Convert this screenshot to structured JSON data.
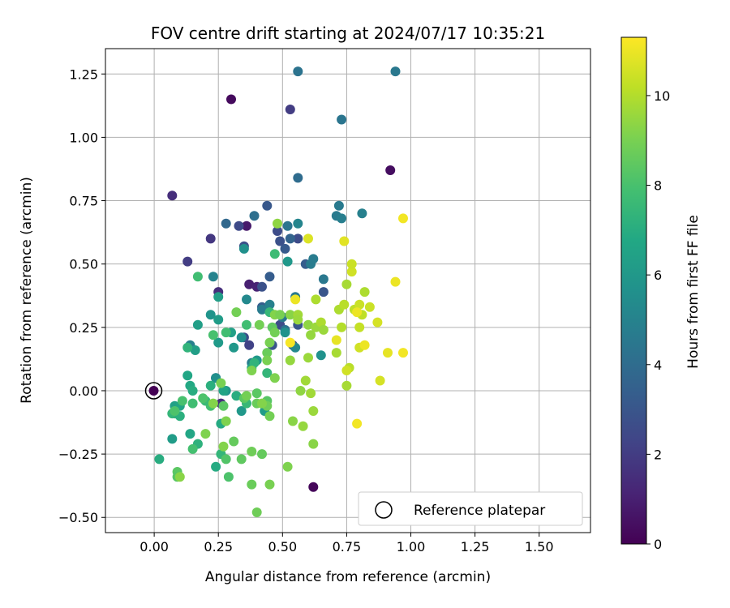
{
  "chart_data": {
    "type": "scatter",
    "title": "FOV centre drift starting at 2024/07/17 10:35:21",
    "xlabel": "Angular distance from reference (arcmin)",
    "ylabel": "Rotation from reference (arcmin)",
    "xlim": [
      -0.19,
      1.7
    ],
    "ylim": [
      -0.56,
      1.35
    ],
    "xticks": [
      0.0,
      0.25,
      0.5,
      0.75,
      1.0,
      1.25,
      1.5
    ],
    "xtick_labels": [
      "0.00",
      "0.25",
      "0.50",
      "0.75",
      "1.00",
      "1.25",
      "1.50"
    ],
    "yticks": [
      -0.5,
      -0.25,
      0.0,
      0.25,
      0.5,
      0.75,
      1.0,
      1.25
    ],
    "ytick_labels": [
      "−0.50",
      "−0.25",
      "0.00",
      "0.25",
      "0.50",
      "0.75",
      "1.00",
      "1.25"
    ],
    "grid": true,
    "colormap": "viridis",
    "colorbar": {
      "label": "Hours from first FF file",
      "range": [
        0,
        11.3
      ],
      "ticks": [
        0,
        2,
        4,
        6,
        8,
        10
      ],
      "tick_labels": [
        "0",
        "2",
        "4",
        "6",
        "8",
        "10"
      ]
    },
    "legend": {
      "placement": "lower-right",
      "entries": [
        {
          "label": "Reference platepar",
          "marker": "hollow-circle"
        }
      ]
    },
    "reference_point": {
      "x": 0.0,
      "y": 0.0,
      "hours": 0.0
    },
    "points": [
      [
        0.3,
        1.15,
        0.3
      ],
      [
        0.92,
        0.87,
        0.4
      ],
      [
        0.62,
        -0.38,
        0.2
      ],
      [
        0.36,
        0.65,
        0.8
      ],
      [
        0.37,
        0.42,
        1.0
      ],
      [
        0.4,
        0.41,
        1.1
      ],
      [
        0.07,
        0.77,
        1.5
      ],
      [
        0.53,
        1.11,
        2.0
      ],
      [
        0.22,
        0.6,
        1.8
      ],
      [
        0.33,
        0.65,
        2.5
      ],
      [
        0.13,
        0.51,
        2.0
      ],
      [
        0.25,
        0.39,
        1.5
      ],
      [
        0.35,
        0.57,
        2.8
      ],
      [
        0.48,
        0.63,
        2.6
      ],
      [
        0.51,
        0.56,
        3.2
      ],
      [
        0.56,
        0.6,
        2.6
      ],
      [
        0.44,
        0.73,
        3.1
      ],
      [
        0.59,
        0.5,
        3.3
      ],
      [
        0.66,
        0.39,
        3.0
      ],
      [
        0.42,
        0.41,
        2.8
      ],
      [
        0.37,
        0.18,
        2.2
      ],
      [
        0.35,
        0.21,
        2.6
      ],
      [
        0.46,
        0.18,
        3.0
      ],
      [
        0.45,
        0.45,
        3.3
      ],
      [
        0.42,
        0.33,
        3.4
      ],
      [
        0.49,
        0.26,
        2.6
      ],
      [
        0.54,
        0.18,
        2.8
      ],
      [
        0.56,
        0.26,
        3.0
      ],
      [
        0.26,
        -0.05,
        1.5
      ],
      [
        0.24,
        0.05,
        2.5
      ],
      [
        0.49,
        0.59,
        2.8
      ],
      [
        0.53,
        0.6,
        3.6
      ],
      [
        0.56,
        1.26,
        4.3
      ],
      [
        0.94,
        1.26,
        4.5
      ],
      [
        0.73,
        1.07,
        4.4
      ],
      [
        0.56,
        0.84,
        4.0
      ],
      [
        0.39,
        0.69,
        4.1
      ],
      [
        0.28,
        0.66,
        3.8
      ],
      [
        0.71,
        0.69,
        4.6
      ],
      [
        0.72,
        0.73,
        4.6
      ],
      [
        0.73,
        0.68,
        4.8
      ],
      [
        0.81,
        0.7,
        4.9
      ],
      [
        0.66,
        0.44,
        4.5
      ],
      [
        0.62,
        0.52,
        4.7
      ],
      [
        0.52,
        0.65,
        4.4
      ],
      [
        0.56,
        0.66,
        5.1
      ],
      [
        0.42,
        0.32,
        4.7
      ],
      [
        0.45,
        0.34,
        4.9
      ],
      [
        0.5,
        0.29,
        4.5
      ],
      [
        0.55,
        0.37,
        4.6
      ],
      [
        0.51,
        0.24,
        4.2
      ],
      [
        0.61,
        0.5,
        4.7
      ],
      [
        0.38,
        0.11,
        4.8
      ],
      [
        0.36,
        0.36,
        5.3
      ],
      [
        0.23,
        0.45,
        5.0
      ],
      [
        0.14,
        0.18,
        4.9
      ],
      [
        0.35,
        0.56,
        5.6
      ],
      [
        0.55,
        0.17,
        5.3
      ],
      [
        0.34,
        0.21,
        5.5
      ],
      [
        0.52,
        0.51,
        6.0
      ],
      [
        0.31,
        0.17,
        6.0
      ],
      [
        0.24,
        0.05,
        5.6
      ],
      [
        0.22,
        0.3,
        5.8
      ],
      [
        0.16,
        0.16,
        6.3
      ],
      [
        0.17,
        0.26,
        6.3
      ],
      [
        0.25,
        0.28,
        6.2
      ],
      [
        0.25,
        0.19,
        6.1
      ],
      [
        0.28,
        0.0,
        5.9
      ],
      [
        0.34,
        -0.08,
        6.0
      ],
      [
        0.3,
        0.23,
        6.4
      ],
      [
        0.65,
        0.14,
        5.7
      ],
      [
        0.51,
        0.23,
        5.7
      ],
      [
        0.43,
        -0.08,
        6.2
      ],
      [
        0.4,
        0.12,
        6.0
      ],
      [
        0.25,
        0.37,
        6.3
      ],
      [
        0.38,
        0.09,
        6.5
      ],
      [
        0.27,
        0.0,
        6.6
      ],
      [
        0.08,
        -0.06,
        6.4
      ],
      [
        0.1,
        -0.06,
        6.6
      ],
      [
        0.07,
        -0.19,
        6.2
      ],
      [
        0.08,
        -0.09,
        6.7
      ],
      [
        0.13,
        0.06,
        6.7
      ],
      [
        0.14,
        -0.17,
        6.7
      ],
      [
        0.14,
        0.02,
        6.8
      ],
      [
        0.02,
        -0.27,
        7.0
      ],
      [
        0.26,
        -0.13,
        6.9
      ],
      [
        0.15,
        0.0,
        7.0
      ],
      [
        0.22,
        0.02,
        7.1
      ],
      [
        0.24,
        -0.3,
        6.9
      ],
      [
        0.13,
        0.17,
        7.3
      ],
      [
        0.07,
        -0.09,
        7.4
      ],
      [
        0.1,
        -0.1,
        7.1
      ],
      [
        0.17,
        -0.21,
        7.2
      ],
      [
        0.26,
        -0.25,
        7.4
      ],
      [
        0.32,
        -0.02,
        7.0
      ],
      [
        0.39,
        0.11,
        7.3
      ],
      [
        0.44,
        0.07,
        7.4
      ],
      [
        0.36,
        -0.05,
        7.5
      ],
      [
        0.17,
        0.45,
        7.8
      ],
      [
        0.45,
        0.31,
        7.5
      ],
      [
        0.47,
        0.54,
        7.7
      ],
      [
        0.36,
        0.26,
        7.8
      ],
      [
        0.28,
        0.23,
        7.8
      ],
      [
        0.23,
        0.22,
        8.0
      ],
      [
        0.22,
        -0.06,
        7.9
      ],
      [
        0.2,
        -0.04,
        7.6
      ],
      [
        0.15,
        -0.05,
        7.8
      ],
      [
        0.15,
        -0.23,
        7.9
      ],
      [
        0.11,
        -0.04,
        8.0
      ],
      [
        0.08,
        -0.08,
        8.1
      ],
      [
        0.09,
        -0.32,
        8.4
      ],
      [
        0.09,
        -0.34,
        8.3
      ],
      [
        0.19,
        -0.03,
        8.1
      ],
      [
        0.27,
        -0.06,
        8.4
      ],
      [
        0.28,
        -0.27,
        8.2
      ],
      [
        0.29,
        -0.34,
        8.1
      ],
      [
        0.31,
        -0.2,
        8.6
      ],
      [
        0.35,
        -0.03,
        8.4
      ],
      [
        0.34,
        -0.27,
        8.5
      ],
      [
        0.38,
        -0.37,
        8.7
      ],
      [
        0.38,
        -0.24,
        8.8
      ],
      [
        0.42,
        -0.25,
        8.6
      ],
      [
        0.4,
        -0.01,
        8.4
      ],
      [
        0.4,
        -0.05,
        8.7
      ],
      [
        0.44,
        -0.04,
        8.3
      ],
      [
        0.45,
        -0.37,
        9.0
      ],
      [
        0.45,
        -0.1,
        8.9
      ],
      [
        0.46,
        0.25,
        8.5
      ],
      [
        0.47,
        0.23,
        8.9
      ],
      [
        0.45,
        0.19,
        9.0
      ],
      [
        0.44,
        0.15,
        8.7
      ],
      [
        0.44,
        0.12,
        9.0
      ],
      [
        0.44,
        -0.06,
        8.8
      ],
      [
        0.41,
        0.26,
        8.9
      ],
      [
        0.42,
        -0.05,
        9.2
      ],
      [
        0.4,
        -0.48,
        8.8
      ],
      [
        0.38,
        0.08,
        9.1
      ],
      [
        0.36,
        -0.02,
        8.9
      ],
      [
        0.32,
        0.31,
        8.9
      ],
      [
        0.28,
        -0.12,
        9.1
      ],
      [
        0.27,
        -0.22,
        9.2
      ],
      [
        0.26,
        0.03,
        9.0
      ],
      [
        0.23,
        -0.05,
        9.2
      ],
      [
        0.2,
        -0.17,
        9.1
      ],
      [
        0.1,
        -0.34,
        9.3
      ],
      [
        0.47,
        0.05,
        9.1
      ],
      [
        0.47,
        0.3,
        9.2
      ],
      [
        0.48,
        0.66,
        9.4
      ],
      [
        0.49,
        0.3,
        9.0
      ],
      [
        0.52,
        -0.3,
        9.1
      ],
      [
        0.53,
        0.3,
        9.3
      ],
      [
        0.53,
        0.12,
        9.5
      ],
      [
        0.54,
        -0.12,
        9.3
      ],
      [
        0.56,
        0.3,
        9.7
      ],
      [
        0.56,
        0.28,
        9.6
      ],
      [
        0.57,
        0.0,
        9.4
      ],
      [
        0.58,
        -0.14,
        9.5
      ],
      [
        0.59,
        0.04,
        9.7
      ],
      [
        0.6,
        0.13,
        9.6
      ],
      [
        0.6,
        0.26,
        9.4
      ],
      [
        0.61,
        -0.01,
        9.7
      ],
      [
        0.61,
        0.22,
        9.5
      ],
      [
        0.62,
        -0.08,
        9.6
      ],
      [
        0.62,
        -0.21,
        9.3
      ],
      [
        0.63,
        0.36,
        9.9
      ],
      [
        0.63,
        0.25,
        9.6
      ],
      [
        0.65,
        0.27,
        9.9
      ],
      [
        0.66,
        0.24,
        9.6
      ],
      [
        0.71,
        0.15,
        9.8
      ],
      [
        0.72,
        0.32,
        9.9
      ],
      [
        0.73,
        0.25,
        10.0
      ],
      [
        0.74,
        0.34,
        10.1
      ],
      [
        0.75,
        0.02,
        9.8
      ],
      [
        0.75,
        0.42,
        9.8
      ],
      [
        0.76,
        0.09,
        10.1
      ],
      [
        0.77,
        0.47,
        10.5
      ],
      [
        0.77,
        0.5,
        10.4
      ],
      [
        0.78,
        0.32,
        10.2
      ],
      [
        0.8,
        0.25,
        10.3
      ],
      [
        0.8,
        0.34,
        10.4
      ],
      [
        0.8,
        0.17,
        10.5
      ],
      [
        0.81,
        0.3,
        10.2
      ],
      [
        0.82,
        0.39,
        9.9
      ],
      [
        0.84,
        0.33,
        10.4
      ],
      [
        0.87,
        0.27,
        10.6
      ],
      [
        0.88,
        0.04,
        10.6
      ],
      [
        0.75,
        0.08,
        10.5
      ],
      [
        0.74,
        0.59,
        10.8
      ],
      [
        0.6,
        0.6,
        10.7
      ],
      [
        0.55,
        0.36,
        11.0
      ],
      [
        0.53,
        0.19,
        11.2
      ],
      [
        0.71,
        0.2,
        10.9
      ],
      [
        0.79,
        0.31,
        11.0
      ],
      [
        0.79,
        -0.13,
        11.1
      ],
      [
        0.82,
        0.18,
        11.0
      ],
      [
        0.91,
        0.15,
        10.9
      ],
      [
        0.94,
        0.43,
        11.0
      ],
      [
        0.97,
        0.15,
        11.1
      ],
      [
        0.97,
        0.68,
        11.1
      ]
    ]
  }
}
